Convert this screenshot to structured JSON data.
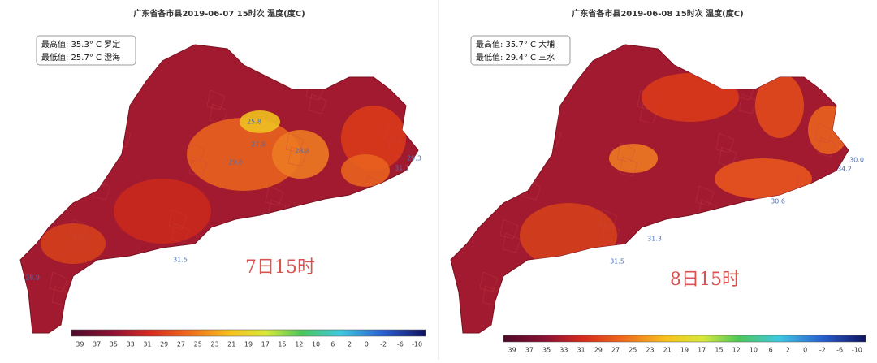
{
  "panels": [
    {
      "title": "广东省各市县2019-06-07 15时次 温度(度C)",
      "legend": {
        "max_line": "最高值: 35.3° C 罗定",
        "min_line": "最低值: 25.7° C 澄海"
      },
      "caption": "7日15时",
      "map_labels": [
        "25.8",
        "27.8",
        "28.8",
        "29.8",
        "31.1",
        "29.3",
        "31.5",
        "28.9"
      ],
      "colorbar_ticks": [
        39,
        37,
        35,
        33,
        31,
        29,
        27,
        25,
        23,
        21,
        19,
        17,
        15,
        12,
        10,
        6,
        2,
        0,
        -2,
        -6,
        -10
      ]
    },
    {
      "title": "广东省各市县2019-06-08 15时次 温度(度C)",
      "legend": {
        "max_line": "最高值: 35.7° C 大埔",
        "min_line": "最低值: 29.4° C 三水"
      },
      "caption": "8日15时",
      "map_labels": [
        "30.0",
        "34.2",
        "30.6",
        "31.3",
        "31.5"
      ],
      "colorbar_ticks": [
        39,
        37,
        35,
        33,
        31,
        29,
        27,
        25,
        23,
        21,
        19,
        17,
        15,
        12,
        10,
        6,
        2,
        0,
        -2,
        -6,
        -10
      ]
    }
  ]
}
